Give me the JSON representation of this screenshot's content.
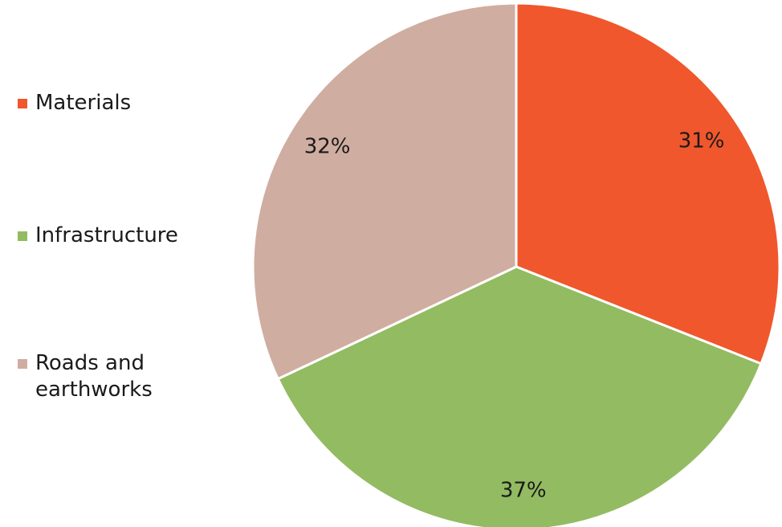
{
  "chart_data": {
    "type": "pie",
    "labels": [
      "Materials",
      "Infrastructure",
      "Roads and earthworks"
    ],
    "values": [
      31,
      37,
      32
    ],
    "value_labels": [
      "31%",
      "37%",
      "32%"
    ],
    "colors": [
      "#F0572D",
      "#93BB62",
      "#D0ADA1"
    ],
    "start_angle_deg": 0,
    "direction": "clockwise",
    "legend_position": "left",
    "title": ""
  }
}
